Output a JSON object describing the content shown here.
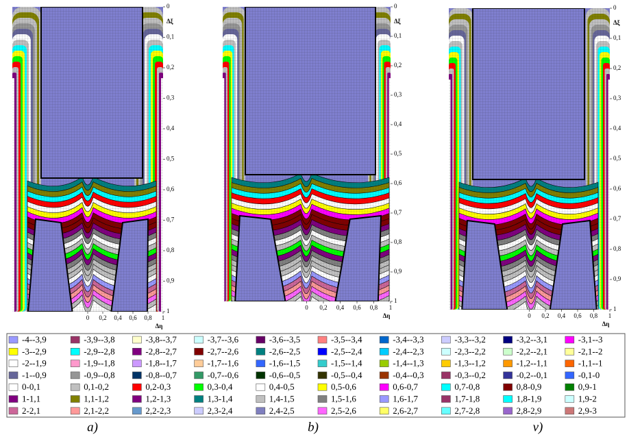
{
  "panels": [
    {
      "caption": "a)",
      "y_label": "Δξ",
      "x_label": "Δη",
      "xlim": [
        -1,
        1
      ],
      "ylim": [
        0,
        1
      ],
      "yticks": [
        0,
        {
          "value": 0.1,
          "label": "0,1"
        },
        {
          "value": 0.2,
          "label": "0,2"
        },
        {
          "value": 0.3,
          "label": "0,3"
        },
        {
          "value": 0.4,
          "label": "0,4"
        },
        {
          "value": 0.5,
          "label": "0,5"
        },
        {
          "value": 0.6,
          "label": "0,6"
        },
        {
          "value": 0.7,
          "label": "0,7"
        },
        {
          "value": 0.8,
          "label": "0,8"
        },
        {
          "value": 0.9,
          "label": "0,9"
        },
        1
      ],
      "xticks": [
        0,
        {
          "value": 0.2,
          "label": "0,2"
        },
        {
          "value": 0.4,
          "label": "0,4"
        },
        {
          "value": 0.6,
          "label": "0,6"
        },
        {
          "value": 0.8,
          "label": "0,8"
        },
        1
      ]
    },
    {
      "caption": "b)",
      "y_label": "Δξ",
      "x_label": "Δη",
      "xlim": [
        -1,
        1
      ],
      "ylim": [
        0,
        1
      ],
      "yticks": [
        0,
        {
          "value": 0.1,
          "label": "0,1"
        },
        {
          "value": 0.2,
          "label": "0,2"
        },
        {
          "value": 0.3,
          "label": "0,3"
        },
        {
          "value": 0.4,
          "label": "0,4"
        },
        {
          "value": 0.5,
          "label": "0,5"
        },
        {
          "value": 0.6,
          "label": "0,6"
        },
        {
          "value": 0.7,
          "label": "0,7"
        },
        {
          "value": 0.8,
          "label": "0,8"
        },
        {
          "value": 0.9,
          "label": "0,9"
        },
        1
      ],
      "xticks": [
        0,
        {
          "value": 0.2,
          "label": "0,2"
        },
        {
          "value": 0.4,
          "label": "0,4"
        },
        {
          "value": 0.6,
          "label": "0,6"
        },
        {
          "value": 0.8,
          "label": "0,8"
        },
        1
      ]
    },
    {
      "caption": "v)",
      "y_label": "Δξ",
      "x_label": "Δη",
      "xlim": [
        -1,
        1
      ],
      "ylim": [
        0,
        1
      ],
      "yticks": [
        0,
        {
          "value": 0.1,
          "label": "0,1"
        },
        {
          "value": 0.2,
          "label": "0,2"
        },
        {
          "value": 0.3,
          "label": "0,3"
        },
        {
          "value": 0.4,
          "label": "0,4"
        },
        {
          "value": 0.5,
          "label": "0,5"
        },
        {
          "value": 0.6,
          "label": "0,6"
        },
        {
          "value": 0.7,
          "label": "0,7"
        },
        {
          "value": 0.8,
          "label": "0,8"
        },
        {
          "value": 0.9,
          "label": "0,9"
        },
        1
      ],
      "xticks": [
        0,
        {
          "value": 0.2,
          "label": "0,2"
        },
        {
          "value": 0.4,
          "label": "0,4"
        },
        {
          "value": 0.6,
          "label": "0,6"
        },
        {
          "value": 0.8,
          "label": "0,8"
        },
        1
      ]
    }
  ],
  "legend": [
    {
      "label": "-4--3,9",
      "color": "#9999ff"
    },
    {
      "label": "-3,9--3,8",
      "color": "#993366"
    },
    {
      "label": "-3,8--3,7",
      "color": "#ffffcc"
    },
    {
      "label": "-3,7--3,6",
      "color": "#ccffff"
    },
    {
      "label": "-3,6--3,5",
      "color": "#660066"
    },
    {
      "label": "-3,5--3,4",
      "color": "#ff8080"
    },
    {
      "label": "-3,4--3,3",
      "color": "#0066cc"
    },
    {
      "label": "-3,3--3,2",
      "color": "#ccccff"
    },
    {
      "label": "-3,2--3,1",
      "color": "#000080"
    },
    {
      "label": "-3,1--3",
      "color": "#ff00ff"
    },
    {
      "label": "-3--2,9",
      "color": "#ffff00"
    },
    {
      "label": "-2,9--2,8",
      "color": "#00ffff"
    },
    {
      "label": "-2,8--2,7",
      "color": "#800080"
    },
    {
      "label": "-2,7--2,6",
      "color": "#800000"
    },
    {
      "label": "-2,6--2,5",
      "color": "#008080"
    },
    {
      "label": "-2,5--2,4",
      "color": "#0000ff"
    },
    {
      "label": "-2,4--2,3",
      "color": "#00ccff"
    },
    {
      "label": "-2,3--2,2",
      "color": "#ccffff"
    },
    {
      "label": "-2,2--2,1",
      "color": "#ccffcc"
    },
    {
      "label": "-2,1--2",
      "color": "#ffff99"
    },
    {
      "label": "-2--1,9",
      "color": "#ffffff"
    },
    {
      "label": "-1,9--1,8",
      "color": "#ff99cc"
    },
    {
      "label": "-1,8--1,7",
      "color": "#cc99ff"
    },
    {
      "label": "-1,7--1,6",
      "color": "#ffcc99"
    },
    {
      "label": "-1,6--1,5",
      "color": "#3366ff"
    },
    {
      "label": "-1,5--1,4",
      "color": "#33cccc"
    },
    {
      "label": "-1,4--1,3",
      "color": "#99cc00"
    },
    {
      "label": "-1,3--1,2",
      "color": "#ffcc00"
    },
    {
      "label": "-1,2--1,1",
      "color": "#ff9900"
    },
    {
      "label": "-1,1--1",
      "color": "#ff6600"
    },
    {
      "label": "-1--0,9",
      "color": "#666699"
    },
    {
      "label": "-0,9--0,8",
      "color": "#969696"
    },
    {
      "label": "-0,8--0,7",
      "color": "#003366"
    },
    {
      "label": "-0,7--0,6",
      "color": "#339966"
    },
    {
      "label": "-0,6--0,5",
      "color": "#003300"
    },
    {
      "label": "-0,5--0,4",
      "color": "#333300"
    },
    {
      "label": "-0,4--0,3",
      "color": "#993300"
    },
    {
      "label": "-0,3--0,2",
      "color": "#993366"
    },
    {
      "label": "-0,2--0,1",
      "color": "#333399"
    },
    {
      "label": "-0,1-0",
      "color": "#3366ff"
    },
    {
      "label": "0-0,1",
      "color": "#ffffff"
    },
    {
      "label": "0,1-0,2",
      "color": "#c0c0c0"
    },
    {
      "label": "0,2-0,3",
      "color": "#ff0000"
    },
    {
      "label": "0,3-0,4",
      "color": "#00ff00"
    },
    {
      "label": "0,4-0,5",
      "color": "#ffffff"
    },
    {
      "label": "0,5-0,6",
      "color": "#ffff00"
    },
    {
      "label": "0,6-0,7",
      "color": "#ff00ff"
    },
    {
      "label": "0,7-0,8",
      "color": "#00ffff"
    },
    {
      "label": "0,8-0,9",
      "color": "#800000"
    },
    {
      "label": "0,9-1",
      "color": "#008000"
    },
    {
      "label": "1-1,1",
      "color": "#800080"
    },
    {
      "label": "1,1-1,2",
      "color": "#808000"
    },
    {
      "label": "1,2-1,3",
      "color": "#800080"
    },
    {
      "label": "1,3-1,4",
      "color": "#008080"
    },
    {
      "label": "1,4-1,5",
      "color": "#c0c0c0"
    },
    {
      "label": "1,5-1,6",
      "color": "#808080"
    },
    {
      "label": "1,6-1,7",
      "color": "#9999ff"
    },
    {
      "label": "1,7-1,8",
      "color": "#993366"
    },
    {
      "label": "1,8-1,9",
      "color": "#00ffff"
    },
    {
      "label": "1,9-2",
      "color": "#ccffff"
    },
    {
      "label": "2-2,1",
      "color": "#cc6699"
    },
    {
      "label": "2,1-2,2",
      "color": "#ff9999"
    },
    {
      "label": "2,2-2,3",
      "color": "#6699cc"
    },
    {
      "label": "2,3-2,4",
      "color": "#ccccff"
    },
    {
      "label": "2,4-2,5",
      "color": "#7f7fbf"
    },
    {
      "label": "2,5-2,6",
      "color": "#ff66ff"
    },
    {
      "label": "2,6-2,7",
      "color": "#ffff66"
    },
    {
      "label": "2,7-2,8",
      "color": "#66ffff"
    },
    {
      "label": "2,8-2,9",
      "color": "#9966cc"
    },
    {
      "label": "2,9-3",
      "color": "#cc7777"
    }
  ]
}
